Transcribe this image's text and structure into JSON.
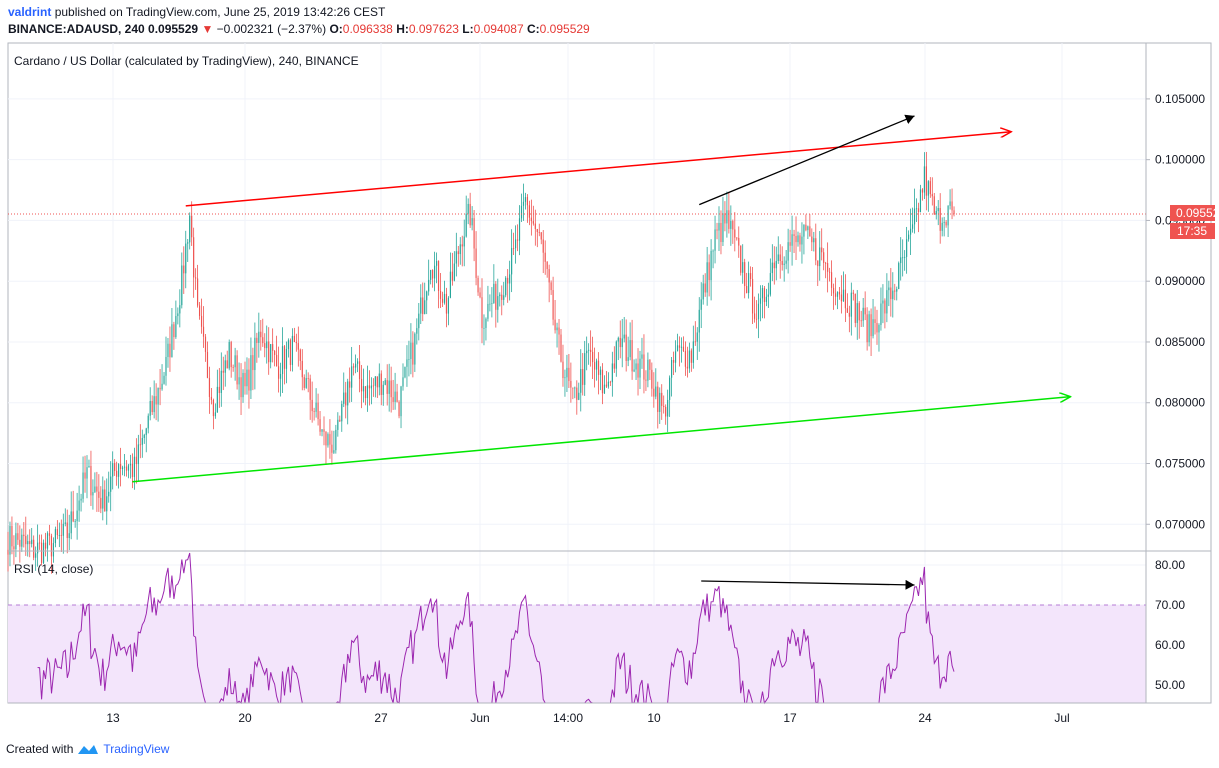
{
  "header": {
    "user": "valdrint",
    "published": "published on TradingView.com, June 25, 2019 13:42:26 CEST",
    "symbol": "BINANCE:ADAUSD, 240",
    "price": "0.095529",
    "change_arrow": "▼",
    "change": "−0.002321 (−2.37%)",
    "o_label": "O:",
    "o": "0.096338",
    "h_label": "H:",
    "h": "0.097623",
    "l_label": "L:",
    "l": "0.094087",
    "c_label": "C:",
    "c": "0.095529"
  },
  "footer": {
    "text": "Created with",
    "brand": "TradingView",
    "logo": "tradingview-logo-icon"
  },
  "colors": {
    "up": "#26a69a",
    "down": "#ef5350",
    "rsi": "#9c27b0",
    "rsi_band": "#f3e5fb",
    "red_line": "#ff0000",
    "green_line": "#00e600",
    "grid": "#f0f3fa"
  },
  "chart_data": {
    "type": "candlestick",
    "title": "Cardano / US Dollar (calculated by TradingView), 240, BINANCE",
    "x_ticks": [
      "13",
      "20",
      "27",
      "Jun",
      "14:00",
      "10",
      "17",
      "24",
      "Jul"
    ],
    "y_ticks": [
      "0.105000",
      "0.100000",
      "0.095000",
      "0.090000",
      "0.085000",
      "0.080000",
      "0.075000",
      "0.070000"
    ],
    "ylim": [
      0.0678,
      0.1096
    ],
    "last_price": "0.095529",
    "countdown": "17:35",
    "anchors": [
      [
        0,
        0.0688
      ],
      [
        6,
        0.0686
      ],
      [
        12,
        0.0679
      ],
      [
        18,
        0.068
      ],
      [
        24,
        0.0685
      ],
      [
        30,
        0.0692
      ],
      [
        40,
        0.0741
      ],
      [
        48,
        0.0718
      ],
      [
        56,
        0.0752
      ],
      [
        64,
        0.0745
      ],
      [
        72,
        0.079
      ],
      [
        80,
        0.083
      ],
      [
        88,
        0.09
      ],
      [
        92,
        0.0955
      ],
      [
        96,
        0.087
      ],
      [
        104,
        0.08
      ],
      [
        112,
        0.084
      ],
      [
        120,
        0.081
      ],
      [
        128,
        0.086
      ],
      [
        136,
        0.083
      ],
      [
        144,
        0.0845
      ],
      [
        152,
        0.081
      ],
      [
        160,
        0.077
      ],
      [
        166,
        0.0765
      ],
      [
        174,
        0.083
      ],
      [
        182,
        0.081
      ],
      [
        190,
        0.082
      ],
      [
        198,
        0.08
      ],
      [
        206,
        0.085
      ],
      [
        214,
        0.092
      ],
      [
        222,
        0.088
      ],
      [
        230,
        0.094
      ],
      [
        234,
        0.0955
      ],
      [
        240,
        0.087
      ],
      [
        248,
        0.089
      ],
      [
        256,
        0.092
      ],
      [
        262,
        0.0965
      ],
      [
        270,
        0.093
      ],
      [
        278,
        0.085
      ],
      [
        286,
        0.08
      ],
      [
        294,
        0.084
      ],
      [
        302,
        0.081
      ],
      [
        310,
        0.085
      ],
      [
        318,
        0.0835
      ],
      [
        326,
        0.082
      ],
      [
        332,
        0.079
      ],
      [
        338,
        0.084
      ],
      [
        346,
        0.084
      ],
      [
        352,
        0.089
      ],
      [
        358,
        0.0935
      ],
      [
        364,
        0.095
      ],
      [
        372,
        0.091
      ],
      [
        380,
        0.087
      ],
      [
        388,
        0.092
      ],
      [
        396,
        0.093
      ],
      [
        404,
        0.0935
      ],
      [
        412,
        0.092
      ],
      [
        420,
        0.0895
      ],
      [
        428,
        0.088
      ],
      [
        436,
        0.086
      ],
      [
        444,
        0.088
      ],
      [
        450,
        0.09
      ],
      [
        458,
        0.094
      ],
      [
        464,
        0.0985
      ],
      [
        470,
        0.095
      ],
      [
        476,
        0.096
      ],
      [
        478,
        0.0955
      ]
    ],
    "resistance_line": {
      "from": [
        90,
        0.0962
      ],
      "to": [
        508,
        0.1023
      ],
      "color": "red"
    },
    "support_line": {
      "from": [
        63,
        0.0735
      ],
      "to": [
        538,
        0.0805
      ],
      "color": "green"
    },
    "price_higher_high": {
      "from": [
        350,
        0.0963
      ],
      "to": [
        459,
        0.1036
      ]
    },
    "rsi": {
      "label": "RSI (14, close)",
      "ylim": [
        45.5,
        83.5
      ],
      "y_ticks": [
        "80.00",
        "70.00",
        "60.00",
        "50.00"
      ],
      "band": [
        30,
        70
      ],
      "divergence_line": {
        "from": [
          351,
          76
        ],
        "to": [
          459,
          75
        ]
      }
    }
  }
}
